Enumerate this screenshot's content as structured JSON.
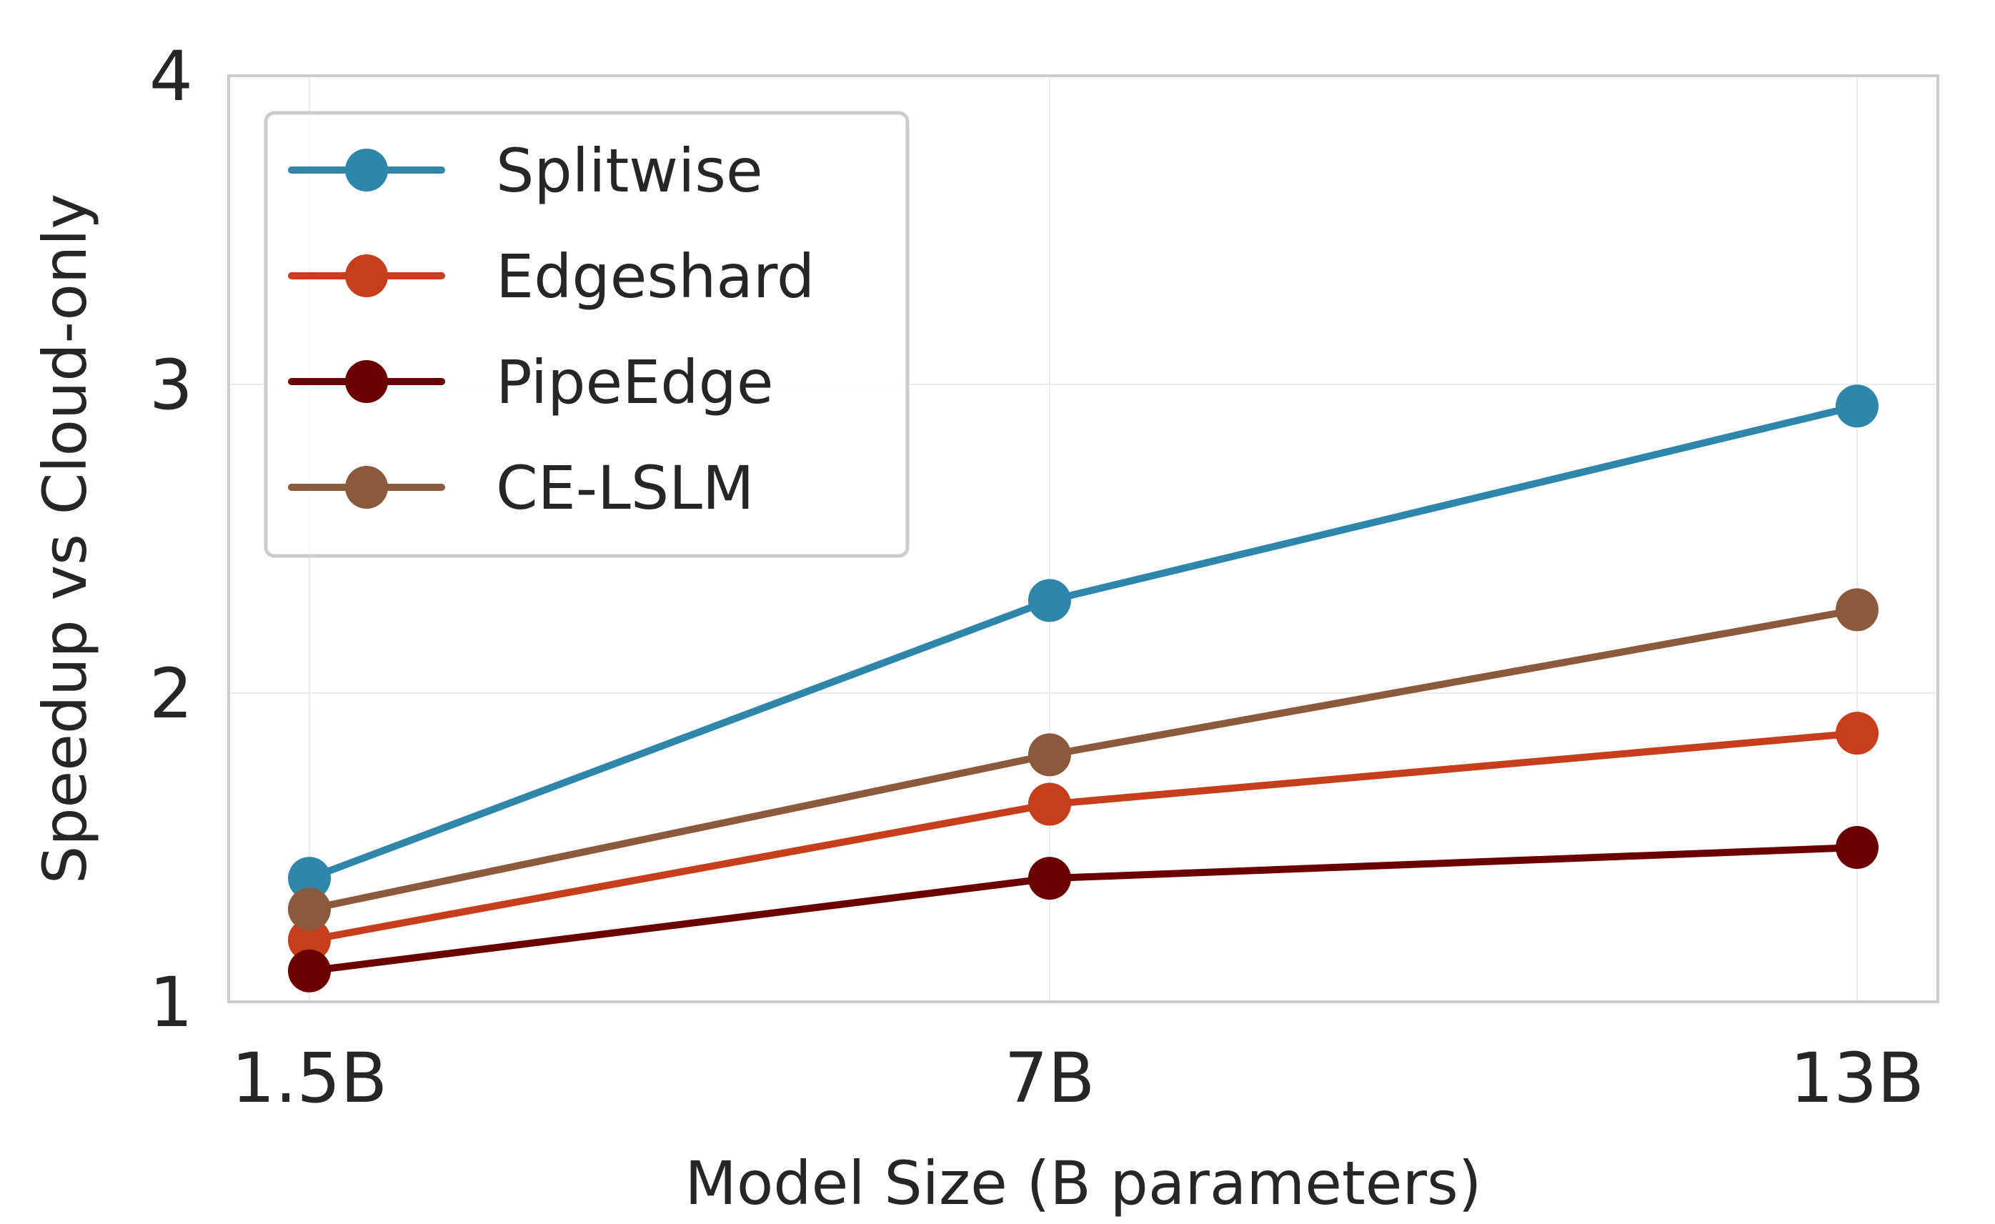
{
  "chart_data": {
    "type": "line",
    "xlabel": "Model Size (B parameters)",
    "ylabel": "Speedup vs Cloud-only",
    "x": [
      1.5,
      7,
      13
    ],
    "x_tick_labels": [
      "1.5B",
      "7B",
      "13B"
    ],
    "xlim": [
      0.9,
      13.6
    ],
    "ylim": [
      1,
      4
    ],
    "y_ticks": [
      1,
      2,
      3,
      4
    ],
    "y_tick_labels": [
      "1",
      "2",
      "3",
      "4"
    ],
    "grid": true,
    "legend_position": "upper-left",
    "series": [
      {
        "name": "Splitwise",
        "color": "#2e86ab",
        "values": [
          1.4,
          2.3,
          2.93
        ]
      },
      {
        "name": "Edgeshard",
        "color": "#c73e1d",
        "values": [
          1.2,
          1.64,
          1.87
        ]
      },
      {
        "name": "PipeEdge",
        "color": "#6a0000",
        "values": [
          1.1,
          1.4,
          1.5
        ]
      },
      {
        "name": "CE-LSLM",
        "color": "#8b5a3c",
        "values": [
          1.3,
          1.8,
          2.27
        ]
      }
    ]
  }
}
